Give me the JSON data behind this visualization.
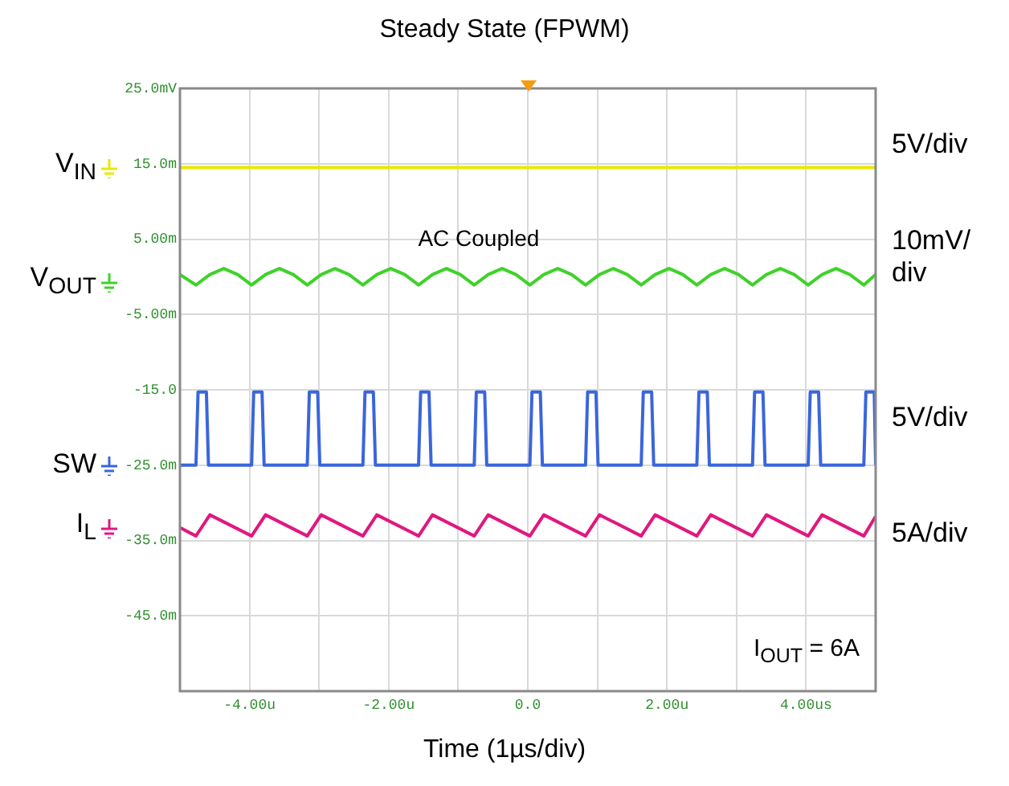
{
  "chart_data": {
    "type": "line",
    "title": "Steady State (FPWM)",
    "xlabel": "Time (1µs/div)",
    "xlim": [
      -5,
      5
    ],
    "ylim": [
      -55,
      25
    ],
    "xticks": [
      {
        "value": -5,
        "label": null
      },
      {
        "value": -4,
        "label": "-4.00u"
      },
      {
        "value": -3,
        "label": null
      },
      {
        "value": -2,
        "label": "-2.00u"
      },
      {
        "value": -1,
        "label": null
      },
      {
        "value": 0,
        "label": "0.0"
      },
      {
        "value": 1,
        "label": null
      },
      {
        "value": 2,
        "label": "2.00u"
      },
      {
        "value": 3,
        "label": null
      },
      {
        "value": 4,
        "label": "4.00us"
      },
      {
        "value": 5,
        "label": null
      }
    ],
    "yticks": [
      {
        "value": -55,
        "label": null
      },
      {
        "value": -45,
        "label": "-45.0m"
      },
      {
        "value": -35,
        "label": "-35.0m"
      },
      {
        "value": -25,
        "label": "-25.0m"
      },
      {
        "value": -15,
        "label": "-15.0"
      },
      {
        "value": -5,
        "label": "-5.00m"
      },
      {
        "value": 5,
        "label": "5.00m"
      },
      {
        "value": 15,
        "label": "15.0m"
      },
      {
        "value": 25,
        "label": "25.0mV"
      }
    ],
    "grid": true,
    "legend": "left",
    "marker": "none",
    "series": [
      {
        "name": "V$_{IN}$",
        "color": "#e8e800",
        "x": [
          -5,
          -2.5,
          0,
          2.5,
          5
        ],
        "values": [
          14.5,
          14.5,
          14.5,
          14.5,
          14.5
        ]
      },
      {
        "name": "V$_{OUT}$",
        "color": "#3fd22a",
        "x": [
          -5,
          -4.77,
          -4.57,
          -4.37,
          -4.17,
          -3.97,
          -3.77,
          -3.57,
          -3.37,
          -3.17,
          -2.97,
          -2.77,
          -2.57,
          -2.37,
          -2.17,
          -1.97,
          -1.77,
          -1.57,
          -1.37,
          -1.17,
          -0.97,
          -0.77,
          -0.57,
          -0.37,
          -0.17,
          0.03,
          0.23,
          0.43,
          0.63,
          0.83,
          1.03,
          1.23,
          1.43,
          1.63,
          1.83,
          2.03,
          2.23,
          2.43,
          2.63,
          2.83,
          3.03,
          3.23,
          3.43,
          3.63,
          3.83,
          4.03,
          4.23,
          4.43,
          4.63,
          4.83,
          5
        ],
        "values": [
          0.3,
          -1.1,
          0.3,
          1.1,
          0.3,
          -1.1,
          0.3,
          1.1,
          0.3,
          -1.1,
          0.3,
          1.1,
          0.3,
          -1.1,
          0.3,
          1.1,
          0.3,
          -1.1,
          0.3,
          1.1,
          0.3,
          -1.1,
          0.3,
          1.1,
          0.3,
          -1.1,
          0.3,
          1.1,
          0.3,
          -1.1,
          0.3,
          1.1,
          0.3,
          -1.1,
          0.3,
          1.1,
          0.3,
          -1.1,
          0.3,
          1.1,
          0.3,
          -1.1,
          0.3,
          1.1,
          0.3,
          -1.1,
          0.3,
          1.1,
          0.3,
          -1.1,
          0.3
        ]
      },
      {
        "name": "SW",
        "color": "#3a66dc",
        "x": [
          -5,
          -4.77,
          -4.74,
          -4.62,
          -4.59,
          -3.97,
          -3.94,
          -3.82,
          -3.79,
          -3.17,
          -3.14,
          -3.02,
          -2.99,
          -2.37,
          -2.34,
          -2.22,
          -2.19,
          -1.57,
          -1.54,
          -1.42,
          -1.39,
          -0.77,
          -0.74,
          -0.62,
          -0.59,
          0.03,
          0.06,
          0.18,
          0.21,
          0.83,
          0.86,
          0.98,
          1.01,
          1.63,
          1.66,
          1.78,
          1.81,
          2.43,
          2.46,
          2.58,
          2.61,
          3.23,
          3.26,
          3.38,
          3.41,
          4.03,
          4.06,
          4.18,
          4.21,
          4.83,
          4.86,
          4.98,
          5
        ],
        "values": [
          -25,
          -25,
          -15.3,
          -15.3,
          -25,
          -25,
          -15.3,
          -15.3,
          -25,
          -25,
          -15.3,
          -15.3,
          -25,
          -25,
          -15.3,
          -15.3,
          -25,
          -25,
          -15.3,
          -15.3,
          -25,
          -25,
          -15.3,
          -15.3,
          -25,
          -25,
          -15.3,
          -15.3,
          -25,
          -25,
          -15.3,
          -15.3,
          -25,
          -25,
          -15.3,
          -15.3,
          -25,
          -25,
          -15.3,
          -15.3,
          -25,
          -25,
          -15.3,
          -15.3,
          -25,
          -25,
          -15.3,
          -15.3,
          -25,
          -25,
          -15.3,
          -15.3,
          -25
        ]
      },
      {
        "name": "I$_{L}$",
        "color": "#e0187f",
        "x": [
          -5,
          -4.77,
          -4.57,
          -3.97,
          -3.77,
          -3.17,
          -2.97,
          -2.37,
          -2.17,
          -1.57,
          -1.37,
          -0.77,
          -0.57,
          0.03,
          0.23,
          0.83,
          1.03,
          1.63,
          1.83,
          2.43,
          2.63,
          3.23,
          3.43,
          4.03,
          4.23,
          4.83,
          5
        ],
        "values": [
          -33.3,
          -34.4,
          -31.6,
          -34.4,
          -31.6,
          -34.4,
          -31.6,
          -34.4,
          -31.6,
          -34.4,
          -31.6,
          -34.4,
          -31.6,
          -34.4,
          -31.6,
          -34.4,
          -31.6,
          -34.4,
          -31.6,
          -34.4,
          -31.6,
          -34.4,
          -31.6,
          -34.4,
          -31.6,
          -34.4,
          -31.8
        ]
      }
    ],
    "annotations": [
      "5V/div",
      "10mV/\ndiv",
      "5V/div",
      "5A/div",
      "AC Coupled",
      "I$_{OUT}$ = 6A"
    ]
  }
}
